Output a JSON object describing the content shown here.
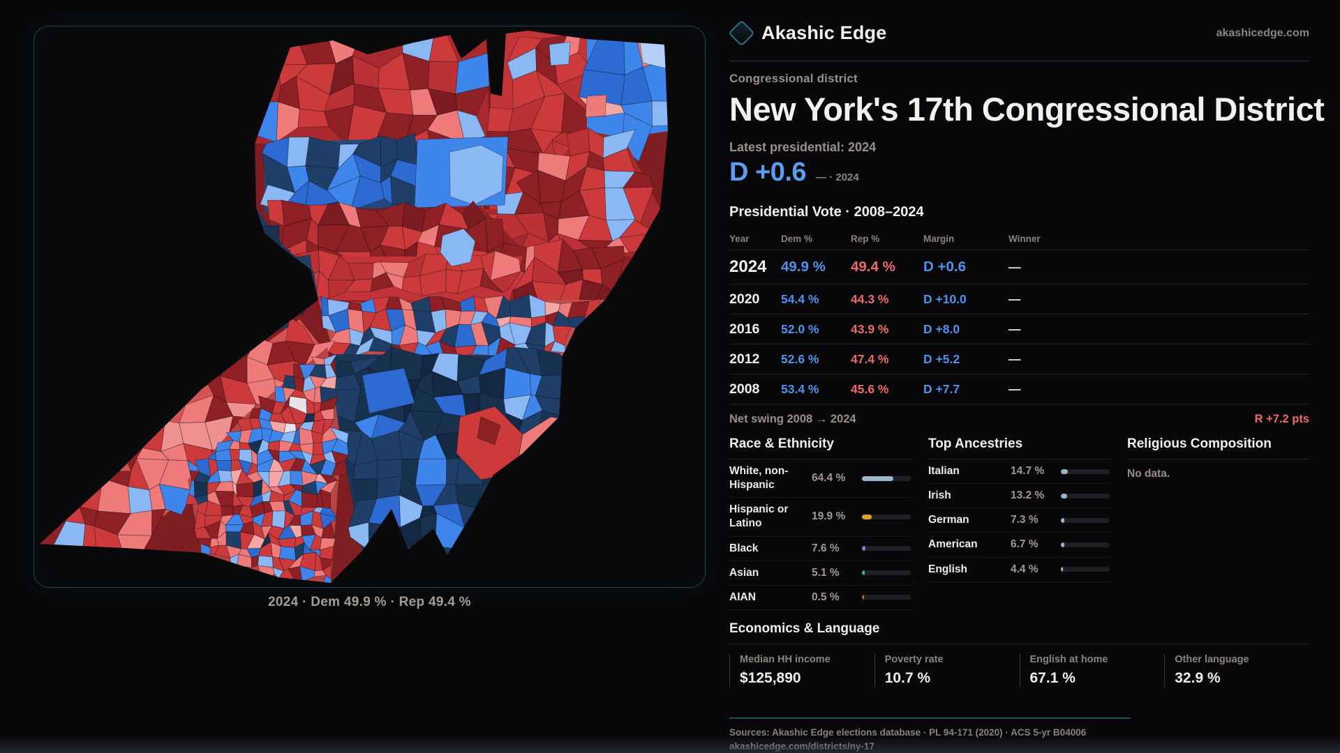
{
  "brand": {
    "name": "Akashic Edge",
    "site": "akashicedge.com"
  },
  "district": {
    "kicker": "Congressional district",
    "title": "New York's 17th Congressional District"
  },
  "latest": {
    "label": "Latest presidential: 2024",
    "margin": "D +0.6",
    "note": "— · 2024"
  },
  "map": {
    "caption": "2024 · Dem 49.9 % · Rep 49.4 %"
  },
  "vote_table": {
    "title": "Presidential Vote · 2008–2024",
    "columns": [
      "Year",
      "Dem %",
      "Rep %",
      "Margin",
      "Winner"
    ],
    "rows": [
      {
        "year": "2024",
        "dem": "49.9 %",
        "rep": "49.4 %",
        "margin": "D +0.6",
        "winner": "—",
        "emphasis": true
      },
      {
        "year": "2020",
        "dem": "54.4 %",
        "rep": "44.3 %",
        "margin": "D +10.0",
        "winner": "—",
        "emphasis": false
      },
      {
        "year": "2016",
        "dem": "52.0 %",
        "rep": "43.9 %",
        "margin": "D +8.0",
        "winner": "—",
        "emphasis": false
      },
      {
        "year": "2012",
        "dem": "52.6 %",
        "rep": "47.4 %",
        "margin": "D +5.2",
        "winner": "—",
        "emphasis": false
      },
      {
        "year": "2008",
        "dem": "53.4 %",
        "rep": "45.6 %",
        "margin": "D +7.7",
        "winner": "—",
        "emphasis": false
      }
    ]
  },
  "net_swing": {
    "label": "Net swing 2008 → 2024",
    "value": "R +7.2 pts"
  },
  "race": {
    "title": "Race & Ethnicity",
    "rows": [
      {
        "label": "White, non-Hispanic",
        "value": "64.4 %",
        "pct": 64.4,
        "color": "#9db4c9"
      },
      {
        "label": "Hispanic or Latino",
        "value": "19.9 %",
        "pct": 19.9,
        "color": "#e3a125"
      },
      {
        "label": "Black",
        "value": "7.6 %",
        "pct": 7.6,
        "color": "#8f7ae0"
      },
      {
        "label": "Asian",
        "value": "5.1 %",
        "pct": 5.1,
        "color": "#2ebd85"
      },
      {
        "label": "AIAN",
        "value": "0.5 %",
        "pct": 0.5,
        "color": "#c2641e"
      }
    ]
  },
  "ancestries": {
    "title": "Top Ancestries",
    "bar_color": "#9db4c9",
    "rows": [
      {
        "label": "Italian",
        "value": "14.7 %",
        "pct": 14.7
      },
      {
        "label": "Irish",
        "value": "13.2 %",
        "pct": 13.2
      },
      {
        "label": "German",
        "value": "7.3 %",
        "pct": 7.3
      },
      {
        "label": "American",
        "value": "6.7 %",
        "pct": 6.7
      },
      {
        "label": "English",
        "value": "4.4 %",
        "pct": 4.4
      }
    ]
  },
  "religion": {
    "title": "Religious Composition",
    "empty": "No data."
  },
  "economics": {
    "title": "Economics & Language",
    "stats": [
      {
        "label": "Median HH income",
        "value": "$125,890"
      },
      {
        "label": "Poverty rate",
        "value": "10.7 %"
      },
      {
        "label": "English at home",
        "value": "67.1 %"
      },
      {
        "label": "Other language",
        "value": "32.9 %"
      }
    ]
  },
  "footer": {
    "sources": "Sources: Akashic Edge elections database · PL 94-171 (2020) · ACS 5-yr B04006",
    "link": "akashicedge.com/districts/ny-17"
  },
  "colors": {
    "dem_blue": "#4f93ee",
    "rep_red": "#ee6a6a",
    "accent_teal": "#2d7486"
  }
}
